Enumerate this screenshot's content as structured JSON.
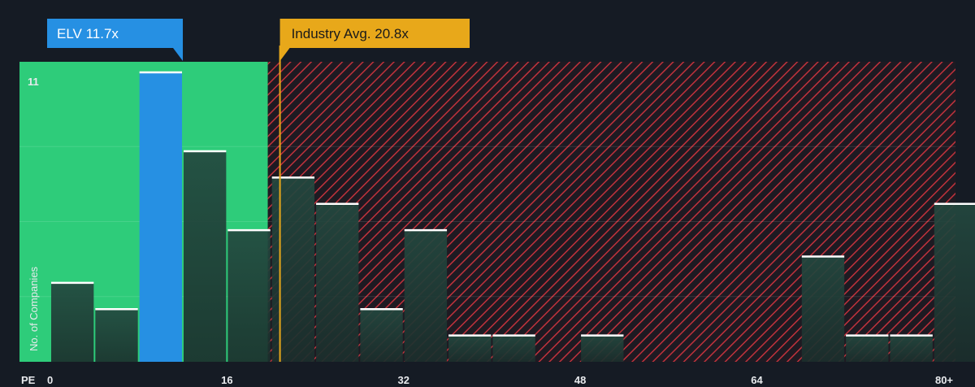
{
  "chart_data": {
    "type": "bar",
    "x_axis_label": "PE",
    "y_axis_label": "No. of Companies",
    "y_max_label": "11",
    "ylim": [
      0,
      11.4
    ],
    "x_tick_labels": [
      "0",
      "16",
      "32",
      "48",
      "64",
      "80+"
    ],
    "x_tick_values": [
      0,
      16,
      32,
      48,
      64,
      80
    ],
    "bin_width": 4,
    "bins": [
      {
        "start": 0,
        "value": 3
      },
      {
        "start": 4,
        "value": 2
      },
      {
        "start": 8,
        "value": 11
      },
      {
        "start": 12,
        "value": 8
      },
      {
        "start": 16,
        "value": 5
      },
      {
        "start": 20,
        "value": 7
      },
      {
        "start": 24,
        "value": 6
      },
      {
        "start": 28,
        "value": 2
      },
      {
        "start": 32,
        "value": 5
      },
      {
        "start": 36,
        "value": 1
      },
      {
        "start": 40,
        "value": 1
      },
      {
        "start": 48,
        "value": 1
      },
      {
        "start": 68,
        "value": 4
      },
      {
        "start": 72,
        "value": 1
      },
      {
        "start": 76,
        "value": 1
      },
      {
        "start": 80,
        "value": 6
      }
    ],
    "company": {
      "label": "ELV 11.7x",
      "value": 11.7,
      "highlight_bin_start": 8
    },
    "industry_avg": {
      "label": "Industry Avg. 20.8x",
      "value": 20.8
    },
    "fair_zone_end": 19.7
  },
  "colors": {
    "background": "#151b24",
    "fair_zone": "#2ecc7a",
    "expensive_hatch": "#c0323c",
    "bar_fill": "#1f4a3d",
    "company_bar": "#2690e3",
    "industry_line": "#e8a81a",
    "bar_cap": "#ffffff"
  }
}
